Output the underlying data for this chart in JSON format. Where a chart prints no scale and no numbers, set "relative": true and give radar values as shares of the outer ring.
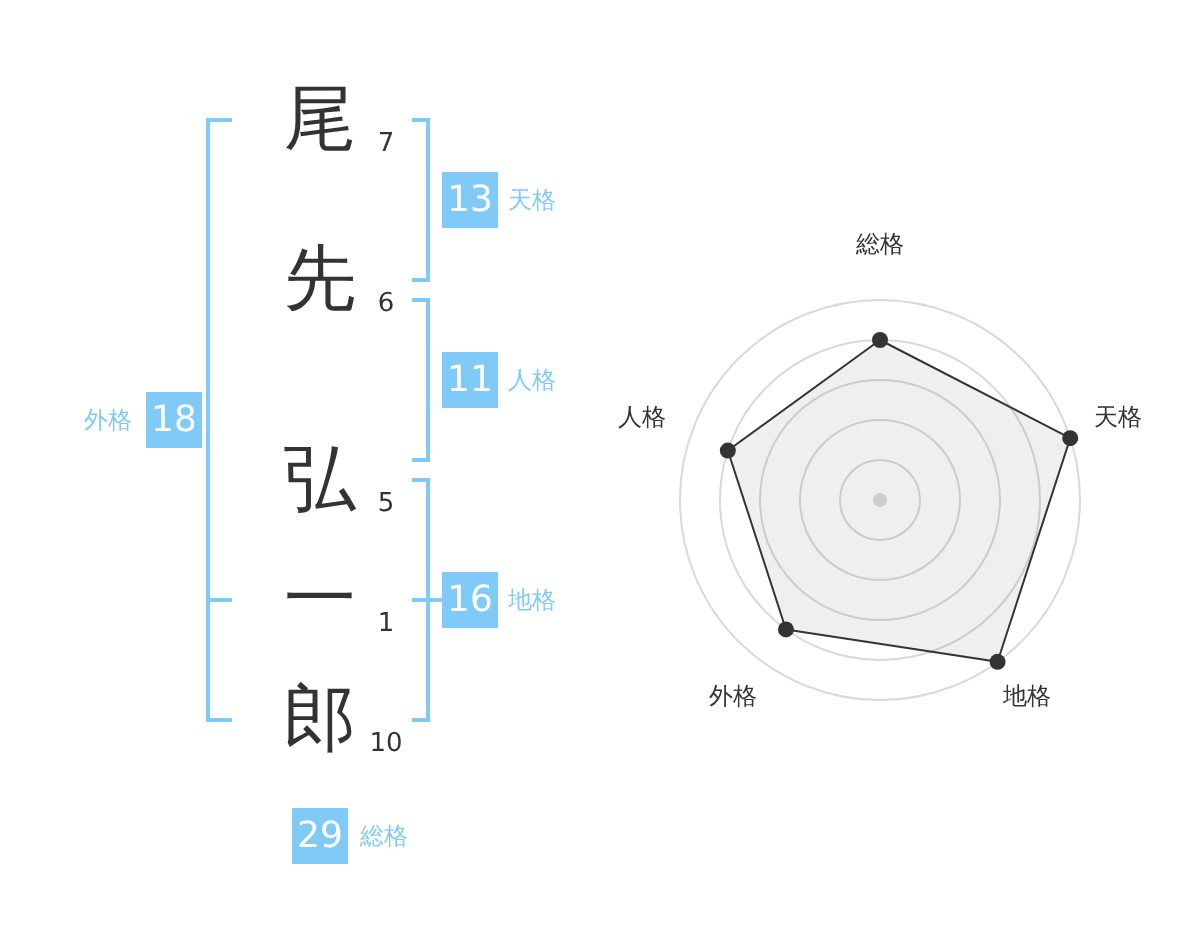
{
  "chart_data": [
    {
      "type": "other",
      "categories": [
        "尾",
        "先",
        "弘",
        "一",
        "郎"
      ],
      "values": [
        7,
        6,
        5,
        1,
        10
      ],
      "data_labels": true,
      "color": "#80caf8",
      "annotations": [
        "13",
        "天格",
        "11",
        "人格",
        "16",
        "地格",
        "18",
        "外格",
        "29",
        "総格"
      ]
    },
    {
      "type": "radar",
      "categories": [
        "総格",
        "天格",
        "地格",
        "外格",
        "人格"
      ],
      "relative": true,
      "series": [
        {
          "color": "#333333",
          "values": [
            0.8,
            1,
            1,
            0.8,
            0.8
          ]
        }
      ],
      "grid": true,
      "marker": "circle"
    }
  ]
}
